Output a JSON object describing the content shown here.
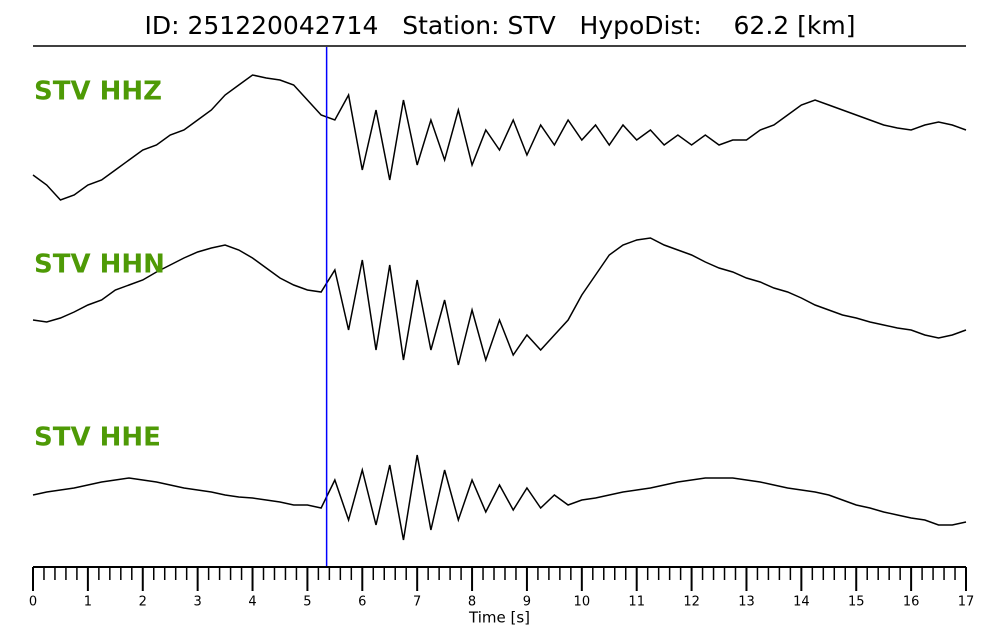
{
  "title": "ID: 251220042714   Station: STV   HypoDist:    62.2 [km]",
  "pick_time": 5.35,
  "pick_color": "#0000ff",
  "chart_data": [
    {
      "type": "line",
      "title": "STV HHZ",
      "title_color": "#4e9a06",
      "color": "#000000",
      "ylim": [
        -80,
        80
      ],
      "x": [
        0,
        0.25,
        0.5,
        0.75,
        1,
        1.25,
        1.5,
        1.75,
        2,
        2.25,
        2.5,
        2.75,
        3,
        3.25,
        3.5,
        3.75,
        4,
        4.25,
        4.5,
        4.75,
        5,
        5.25,
        5.5,
        5.75,
        6,
        6.25,
        6.5,
        6.75,
        7,
        7.25,
        7.5,
        7.75,
        8,
        8.25,
        8.5,
        8.75,
        9,
        9.25,
        9.5,
        9.75,
        10,
        10.25,
        10.5,
        10.75,
        11,
        11.25,
        11.5,
        11.75,
        12,
        12.25,
        12.5,
        12.75,
        13,
        13.25,
        13.5,
        13.75,
        14,
        14.25,
        14.5,
        14.75,
        15,
        15.25,
        15.5,
        15.75,
        16,
        16.25,
        16.5,
        16.75,
        17
      ],
      "values": [
        -35,
        -45,
        -60,
        -55,
        -45,
        -40,
        -30,
        -20,
        -10,
        -5,
        5,
        10,
        20,
        30,
        45,
        55,
        65,
        62,
        60,
        55,
        40,
        25,
        20,
        45,
        -30,
        30,
        -40,
        40,
        -25,
        20,
        -20,
        30,
        -25,
        10,
        -10,
        20,
        -15,
        15,
        -5,
        20,
        0,
        15,
        -5,
        15,
        0,
        10,
        -5,
        5,
        -5,
        5,
        -5,
        0,
        0,
        10,
        15,
        25,
        35,
        40,
        35,
        30,
        25,
        20,
        15,
        12,
        10,
        15,
        18,
        15,
        10
      ]
    },
    {
      "type": "line",
      "title": "STV HHN",
      "title_color": "#4e9a06",
      "color": "#000000",
      "ylim": [
        -80,
        80
      ],
      "x": [
        0,
        0.25,
        0.5,
        0.75,
        1,
        1.25,
        1.5,
        1.75,
        2,
        2.25,
        2.5,
        2.75,
        3,
        3.25,
        3.5,
        3.75,
        4,
        4.25,
        4.5,
        4.75,
        5,
        5.25,
        5.5,
        5.75,
        6,
        6.25,
        6.5,
        6.75,
        7,
        7.25,
        7.5,
        7.75,
        8,
        8.25,
        8.5,
        8.75,
        9,
        9.25,
        9.5,
        9.75,
        10,
        10.25,
        10.5,
        10.75,
        11,
        11.25,
        11.5,
        11.75,
        12,
        12.25,
        12.5,
        12.75,
        13,
        13.25,
        13.5,
        13.75,
        14,
        14.25,
        14.5,
        14.75,
        15,
        15.25,
        15.5,
        15.75,
        16,
        16.25,
        16.5,
        16.75,
        17
      ],
      "values": [
        -20,
        -22,
        -18,
        -12,
        -5,
        0,
        10,
        15,
        20,
        28,
        35,
        42,
        48,
        52,
        55,
        50,
        42,
        32,
        22,
        15,
        10,
        8,
        30,
        -30,
        40,
        -50,
        35,
        -60,
        20,
        -50,
        0,
        -65,
        -10,
        -60,
        -20,
        -55,
        -35,
        -50,
        -35,
        -20,
        5,
        25,
        45,
        55,
        60,
        62,
        55,
        50,
        45,
        38,
        32,
        28,
        22,
        18,
        12,
        8,
        2,
        -5,
        -10,
        -15,
        -18,
        -22,
        -25,
        -28,
        -30,
        -35,
        -38,
        -35,
        -30
      ]
    },
    {
      "type": "line",
      "title": "STV HHE",
      "title_color": "#4e9a06",
      "color": "#000000",
      "ylim": [
        -80,
        80
      ],
      "x": [
        0,
        0.25,
        0.5,
        0.75,
        1,
        1.25,
        1.5,
        1.75,
        2,
        2.25,
        2.5,
        2.75,
        3,
        3.25,
        3.5,
        3.75,
        4,
        4.25,
        4.5,
        4.75,
        5,
        5.25,
        5.5,
        5.75,
        6,
        6.25,
        6.5,
        6.75,
        7,
        7.25,
        7.5,
        7.75,
        8,
        8.25,
        8.5,
        8.75,
        9,
        9.25,
        9.5,
        9.75,
        10,
        10.25,
        10.5,
        10.75,
        11,
        11.25,
        11.5,
        11.75,
        12,
        12.25,
        12.5,
        12.75,
        13,
        13.25,
        13.5,
        13.75,
        14,
        14.25,
        14.5,
        14.75,
        15,
        15.25,
        15.5,
        15.75,
        16,
        16.25,
        16.5,
        16.75,
        17
      ],
      "values": [
        0,
        3,
        5,
        7,
        10,
        13,
        15,
        17,
        15,
        13,
        10,
        7,
        5,
        3,
        0,
        -2,
        -3,
        -5,
        -7,
        -10,
        -10,
        -13,
        15,
        -25,
        25,
        -30,
        30,
        -45,
        40,
        -35,
        25,
        -25,
        15,
        -17,
        10,
        -15,
        7,
        -13,
        0,
        -10,
        -5,
        -3,
        0,
        3,
        5,
        7,
        10,
        13,
        15,
        17,
        17,
        17,
        15,
        13,
        10,
        7,
        5,
        3,
        0,
        -5,
        -10,
        -13,
        -17,
        -20,
        -23,
        -25,
        -30,
        -30,
        -27
      ],
      "xlim": [
        0,
        17
      ],
      "xticks": [
        0,
        1,
        2,
        3,
        4,
        5,
        6,
        7,
        8,
        9,
        10,
        11,
        12,
        13,
        14,
        15,
        16,
        17
      ],
      "xticks_minor": [
        0.2,
        0.4,
        0.6,
        0.8,
        1.2,
        1.4,
        1.6,
        1.8,
        2.2,
        2.4,
        2.6,
        2.8,
        3.2,
        3.4,
        3.6,
        3.8,
        4.2,
        4.4,
        4.6,
        4.8,
        5.2,
        5.4,
        5.6,
        5.8,
        6.2,
        6.4,
        6.6,
        6.8,
        7.2,
        7.4,
        7.6,
        7.8,
        8.2,
        8.4,
        8.6,
        8.8,
        9.2,
        9.4,
        9.6,
        9.8,
        10.2,
        10.4,
        10.6,
        10.8,
        11.2,
        11.4,
        11.6,
        11.8,
        12.2,
        12.4,
        12.6,
        12.8,
        13.2,
        13.4,
        13.6,
        13.8,
        14.2,
        14.4,
        14.6,
        14.8,
        15.2,
        15.4,
        15.6,
        15.8,
        16.2,
        16.4,
        16.6,
        16.8
      ],
      "xlabel": "Time [s]"
    }
  ]
}
